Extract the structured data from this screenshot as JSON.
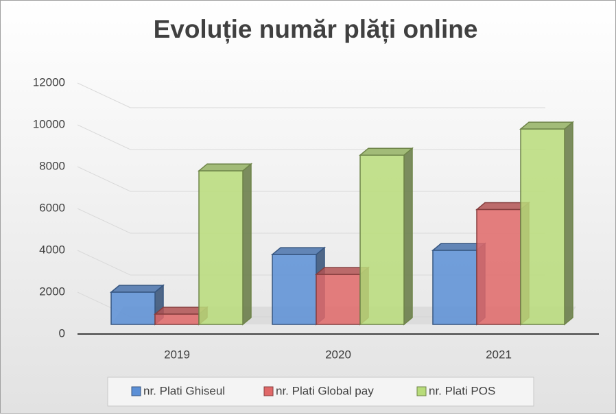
{
  "chart_data": {
    "type": "bar3d",
    "title": "Evoluție număr plăți online",
    "categories": [
      "2019",
      "2020",
      "2021"
    ],
    "series": [
      {
        "name": "nr. Plati Ghiseul",
        "color": "#5b8fd6",
        "values": [
          2000,
          3800,
          4000
        ]
      },
      {
        "name": "nr. Plati Global pay",
        "color": "#e06868",
        "values": [
          950,
          2850,
          5950
        ]
      },
      {
        "name": "nr. Plati POS",
        "color": "#b8dc7a",
        "values": [
          7800,
          8550,
          9800
        ]
      }
    ],
    "ylim": [
      0,
      12000
    ],
    "yticks": [
      0,
      2000,
      4000,
      6000,
      8000,
      10000,
      12000
    ],
    "grid": true,
    "legend": "bottom"
  }
}
